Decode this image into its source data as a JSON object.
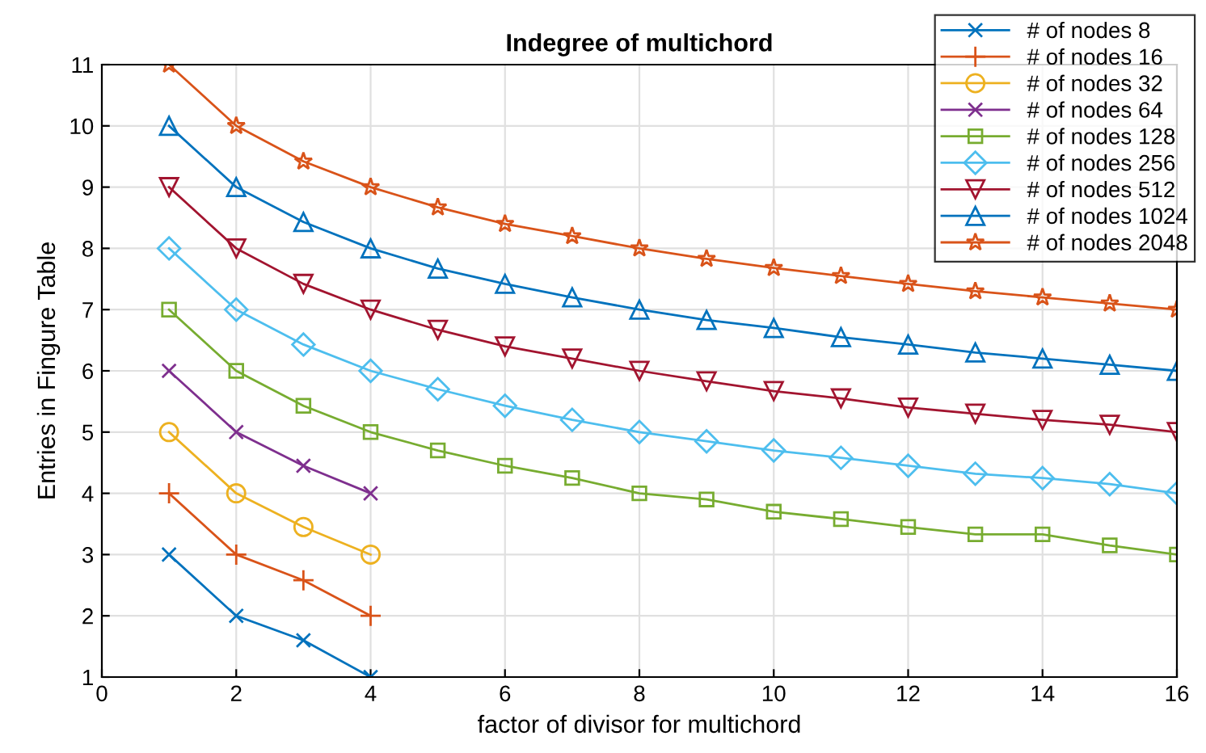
{
  "chart_data": {
    "type": "line",
    "title": "Indegree of multichord",
    "xlabel": "factor of divisor for multichord",
    "ylabel": "Entries in Fingure Table",
    "xlim": [
      0,
      16
    ],
    "ylim": [
      1,
      11
    ],
    "xticks": [
      0,
      2,
      4,
      6,
      8,
      10,
      12,
      14,
      16
    ],
    "yticks": [
      1,
      2,
      3,
      4,
      5,
      6,
      7,
      8,
      9,
      10,
      11
    ],
    "grid": true,
    "legend": "top right",
    "line_style": "solid",
    "series": [
      {
        "name": "# of nodes 8",
        "color": "#0072bd",
        "marker": "cross",
        "x": [
          1,
          2,
          3,
          4
        ],
        "values": [
          3,
          2,
          1.6,
          1
        ]
      },
      {
        "name": "# of nodes 16",
        "color": "#d95319",
        "marker": "plus",
        "x": [
          1,
          2,
          3,
          4
        ],
        "values": [
          4,
          3,
          2.58,
          2
        ]
      },
      {
        "name": "# of nodes 32",
        "color": "#edb120",
        "marker": "circle",
        "x": [
          1,
          2,
          3,
          4
        ],
        "values": [
          5,
          4,
          3.45,
          3
        ]
      },
      {
        "name": "# of nodes 64",
        "color": "#7e2f8e",
        "marker": "cross",
        "x": [
          1,
          2,
          3,
          4
        ],
        "values": [
          6,
          5,
          4.45,
          4
        ]
      },
      {
        "name": "# of nodes 128",
        "color": "#77ac30",
        "marker": "square",
        "x": [
          1,
          2,
          3,
          4,
          5,
          6,
          7,
          8,
          9,
          10,
          11,
          12,
          13,
          14,
          15,
          16
        ],
        "values": [
          7,
          6,
          5.43,
          5,
          4.7,
          4.45,
          4.25,
          4.0,
          3.9,
          3.7,
          3.58,
          3.45,
          3.33,
          3.33,
          3.15,
          3.0
        ]
      },
      {
        "name": "# of nodes 256",
        "color": "#4dbeee",
        "marker": "diamond",
        "x": [
          1,
          2,
          3,
          4,
          5,
          6,
          7,
          8,
          9,
          10,
          11,
          12,
          13,
          14,
          15,
          16
        ],
        "values": [
          8,
          7,
          6.43,
          6,
          5.7,
          5.43,
          5.2,
          5.0,
          4.85,
          4.7,
          4.58,
          4.45,
          4.32,
          4.25,
          4.15,
          4.0
        ]
      },
      {
        "name": "# of nodes 512",
        "color": "#a2142f",
        "marker": "triangle_down",
        "x": [
          1,
          2,
          3,
          4,
          5,
          6,
          7,
          8,
          9,
          10,
          11,
          12,
          13,
          14,
          15,
          16
        ],
        "values": [
          9,
          8,
          7.42,
          7,
          6.67,
          6.4,
          6.2,
          6.0,
          5.83,
          5.67,
          5.55,
          5.4,
          5.3,
          5.2,
          5.12,
          5.0
        ]
      },
      {
        "name": "# of nodes 1024",
        "color": "#0072bd",
        "marker": "triangle",
        "x": [
          1,
          2,
          3,
          4,
          5,
          6,
          7,
          8,
          9,
          10,
          11,
          12,
          13,
          14,
          15,
          16
        ],
        "values": [
          10,
          9,
          8.43,
          8,
          7.67,
          7.42,
          7.2,
          7.0,
          6.83,
          6.7,
          6.55,
          6.43,
          6.3,
          6.2,
          6.1,
          6.0
        ]
      },
      {
        "name": "# of nodes 2048",
        "color": "#d95319",
        "marker": "star",
        "x": [
          1,
          2,
          3,
          4,
          5,
          6,
          7,
          8,
          9,
          10,
          11,
          12,
          13,
          14,
          15,
          16
        ],
        "values": [
          11,
          10,
          9.42,
          9,
          8.67,
          8.4,
          8.2,
          8.0,
          7.83,
          7.68,
          7.55,
          7.42,
          7.3,
          7.2,
          7.1,
          7.0
        ]
      }
    ]
  }
}
